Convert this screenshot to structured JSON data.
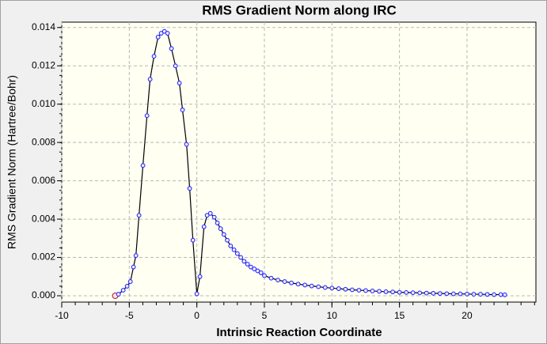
{
  "chart_data": {
    "type": "line",
    "title": "RMS Gradient Norm along IRC",
    "x_label": "Intrinsic Reaction Coordinate",
    "y_label": "RMS Gradient Norm (Hartree/Bohr)",
    "x": [
      -6.04,
      -5.8,
      -5.45,
      -5.16,
      -4.92,
      -4.69,
      -4.51,
      -4.28,
      -3.99,
      -3.69,
      -3.46,
      -3.17,
      -2.87,
      -2.64,
      -2.4,
      -2.17,
      -1.88,
      -1.58,
      -1.29,
      -1.06,
      -0.76,
      -0.53,
      -0.29,
      0,
      0.23,
      0.53,
      0.76,
      1.0,
      1.29,
      1.52,
      1.76,
      2.0,
      2.25,
      2.5,
      2.75,
      3.0,
      3.25,
      3.5,
      3.75,
      4.0,
      4.25,
      4.5,
      4.75,
      5.0,
      5.5,
      6.0,
      6.5,
      7.0,
      7.5,
      8.0,
      8.5,
      9.0,
      9.5,
      10.0,
      10.5,
      11.0,
      11.5,
      12.0,
      12.5,
      13.0,
      13.5,
      14.0,
      14.5,
      15.0,
      15.5,
      16.0,
      16.5,
      17.0,
      17.5,
      18.0,
      18.5,
      19.0,
      19.5,
      20.0,
      20.5,
      21.0,
      21.5,
      22.0,
      22.5,
      22.8
    ],
    "series": [
      {
        "color": "#1a1aff",
        "line_color": "#000000",
        "values": [
          0,
          8e-05,
          0.00029,
          0.0005,
          0.00074,
          0.0015,
          0.0021,
          0.0042,
          0.0068,
          0.0094,
          0.0113,
          0.0125,
          0.0135,
          0.0137,
          0.0138,
          0.0137,
          0.0129,
          0.012,
          0.0111,
          0.0097,
          0.0079,
          0.0056,
          0.0029,
          0.0001,
          0.001,
          0.0036,
          0.0042,
          0.0043,
          0.0041,
          0.0038,
          0.0035,
          0.0032,
          0.0029,
          0.0026,
          0.0024,
          0.0022,
          0.002,
          0.0018,
          0.00165,
          0.0015,
          0.0014,
          0.0013,
          0.0012,
          0.00105,
          0.00092,
          0.00082,
          0.00074,
          0.00067,
          0.00061,
          0.00056,
          0.00051,
          0.00047,
          0.00043,
          0.0004,
          0.00037,
          0.00034,
          0.00031,
          0.00029,
          0.00027,
          0.00025,
          0.00023,
          0.00021,
          0.0002,
          0.00018,
          0.00017,
          0.00016,
          0.00015,
          0.00014,
          0.00013,
          0.00012,
          0.00011,
          0.0001,
          0.0001,
          9e-05,
          8e-05,
          8e-05,
          7e-05,
          6e-05,
          6e-05,
          5e-05
        ]
      }
    ],
    "highlight_point": 0,
    "highlight_color": "#d01010",
    "xlim": [
      -10,
      25.1
    ],
    "xticks": [
      -10,
      -5,
      0,
      5,
      10,
      15,
      20
    ],
    "ylim": [
      -0.00033,
      0.01428
    ],
    "yticks": [
      {
        "value": 0,
        "label": "0.000"
      },
      0.002,
      0.004,
      0.006,
      0.008,
      {
        "value": 0.01,
        "label": "0.010"
      },
      0.012,
      0.014
    ],
    "grid": true
  }
}
